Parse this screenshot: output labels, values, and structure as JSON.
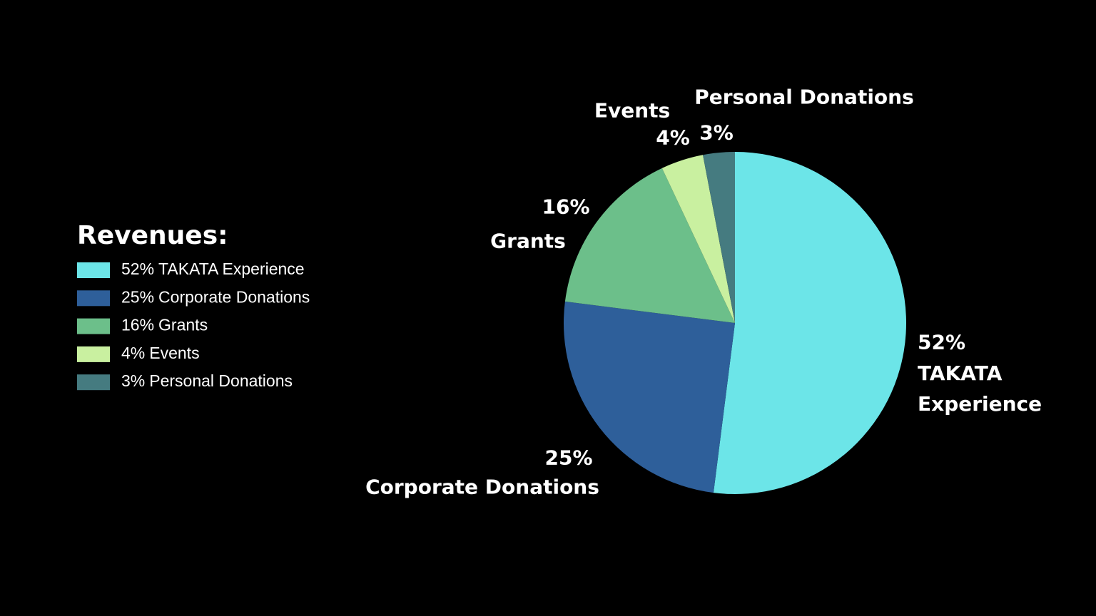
{
  "chart_data": {
    "type": "pie",
    "title": "Revenues:",
    "categories": [
      "TAKATA Experience",
      "Corporate Donations",
      "Grants",
      "Events",
      "Personal Donations"
    ],
    "values": [
      52,
      25,
      16,
      4,
      3
    ],
    "value_labels": [
      "52%",
      "25%",
      "16%",
      "4%",
      "3%"
    ],
    "colors": [
      "#6ce5e8",
      "#2e5f9a",
      "#6cbf8a",
      "#c9f0a0",
      "#457b80"
    ]
  }
}
